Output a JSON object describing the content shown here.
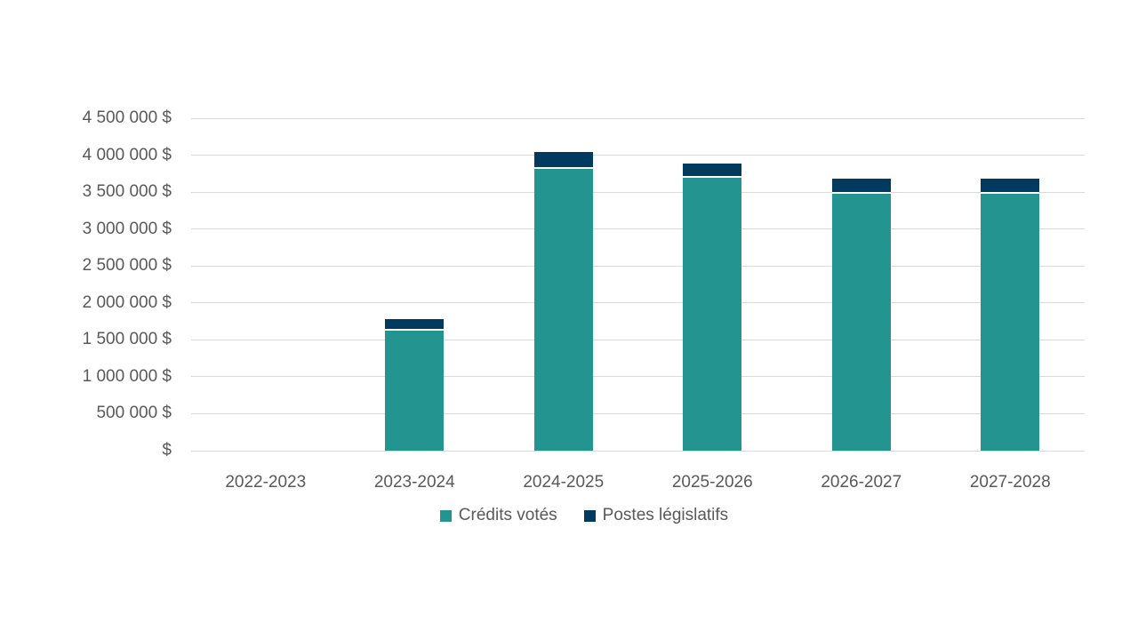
{
  "chart_data": {
    "type": "bar",
    "stacked": true,
    "title": "",
    "xlabel": "",
    "ylabel": "",
    "categories": [
      "2022-2023",
      "2023-2024",
      "2024-2025",
      "2025-2026",
      "2026-2027",
      "2027-2028"
    ],
    "series": [
      {
        "name": "Crédits votés",
        "color": "#23948F",
        "values": [
          0,
          1620000,
          3820000,
          3690000,
          3480000,
          3480000
        ]
      },
      {
        "name": "Postes législatifs",
        "color": "#003A5E",
        "values": [
          0,
          160000,
          220000,
          200000,
          200000,
          200000
        ]
      }
    ],
    "totals": [
      0,
      1780000,
      4040000,
      3890000,
      3680000,
      3680000
    ],
    "ylim": [
      0,
      4500000
    ],
    "ytick_step": 500000,
    "ytick_labels": [
      "$",
      "500 000 $",
      "1 000 000 $",
      "1 500 000 $",
      "2 000 000 $",
      "2 500 000 $",
      "3 000 000 $",
      "3 500 000 $",
      "4 000 000 $",
      "4 500 000 $"
    ],
    "grid": true,
    "legend_position": "bottom"
  },
  "colors": {
    "background": "#FFFFFF",
    "text": "#595959",
    "gridline": "#D9D9D9",
    "segment_separator": "#FFFFFF"
  }
}
